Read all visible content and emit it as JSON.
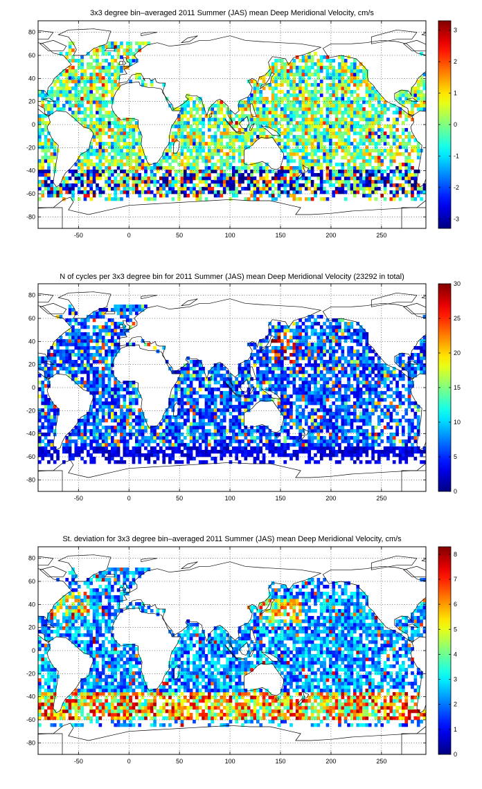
{
  "chart_data": [
    {
      "type": "heatmap",
      "title": "3x3 degree bin–averaged 2011 Summer (JAS) mean Deep Meridional Velocity, cm/s",
      "xlabel": "",
      "ylabel": "",
      "xlim": [
        -90,
        294
      ],
      "ylim": [
        -90,
        90
      ],
      "xticks": [
        -50,
        0,
        50,
        100,
        150,
        200,
        250
      ],
      "yticks": [
        -80,
        -60,
        -40,
        -20,
        0,
        20,
        40,
        60,
        80
      ],
      "grid": true,
      "colormap": "jet",
      "colorbar": {
        "range": [
          -3.3,
          3.3
        ],
        "ticks": [
          -3,
          -2,
          -1,
          0,
          1,
          2,
          3
        ]
      },
      "background_map": "world coastlines",
      "bin_size_deg": 3,
      "seed": 11
    },
    {
      "type": "heatmap",
      "title": "N of cycles per 3x3 degree bin for 2011 Summer (JAS) mean Deep Meridional Velocity (23292 in total)",
      "xlabel": "",
      "ylabel": "",
      "xlim": [
        -90,
        294
      ],
      "ylim": [
        -90,
        90
      ],
      "xticks": [
        -50,
        0,
        50,
        100,
        150,
        200,
        250
      ],
      "yticks": [
        -80,
        -60,
        -40,
        -20,
        0,
        20,
        40,
        60,
        80
      ],
      "grid": true,
      "colormap": "jet",
      "colorbar": {
        "range": [
          0,
          30
        ],
        "ticks": [
          0,
          5,
          10,
          15,
          20,
          25,
          30
        ]
      },
      "background_map": "world coastlines",
      "bin_size_deg": 3,
      "total_cycles": 23292,
      "seed": 23
    },
    {
      "type": "heatmap",
      "title": "St. deviation for 3x3 degree bin–averaged 2011 Summer (JAS) mean Deep Meridional Velocity, cm/s",
      "xlabel": "",
      "ylabel": "",
      "xlim": [
        -90,
        294
      ],
      "ylim": [
        -90,
        90
      ],
      "xticks": [
        -50,
        0,
        50,
        100,
        150,
        200,
        250
      ],
      "yticks": [
        -80,
        -60,
        -40,
        -20,
        0,
        20,
        40,
        60,
        80
      ],
      "grid": true,
      "colormap": "jet",
      "colorbar": {
        "range": [
          0,
          8.3
        ],
        "ticks": [
          0,
          1,
          2,
          3,
          4,
          5,
          6,
          7,
          8
        ]
      },
      "background_map": "world coastlines",
      "bin_size_deg": 3,
      "seed": 37
    }
  ]
}
